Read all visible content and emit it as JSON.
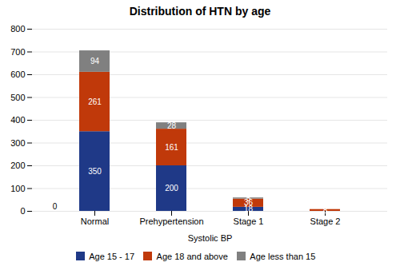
{
  "chart_data": {
    "type": "bar",
    "stacked": true,
    "title": "Distribution of HTN by age",
    "xlabel": "Systolic BP",
    "categories": [
      "Normal",
      "Prehypertension",
      "Stage 1",
      "Stage 2"
    ],
    "series": [
      {
        "name": "Age 15 - 17",
        "color": "#1f3987",
        "values": [
          350,
          200,
          18,
          0
        ]
      },
      {
        "name": "Age 18 and above",
        "color": "#c0390a",
        "values": [
          261,
          161,
          36,
          8
        ]
      },
      {
        "name": "Age less than 15",
        "color": "#808080",
        "values": [
          94,
          28,
          5,
          0
        ]
      }
    ],
    "ylim": [
      0,
      800
    ],
    "yticks": [
      0,
      100,
      200,
      300,
      400,
      500,
      600,
      700,
      800
    ],
    "grid": true,
    "data_labels": true,
    "legend": "bottom",
    "annotations": [
      {
        "text": "0",
        "x": "Normal",
        "y": 8
      }
    ]
  }
}
